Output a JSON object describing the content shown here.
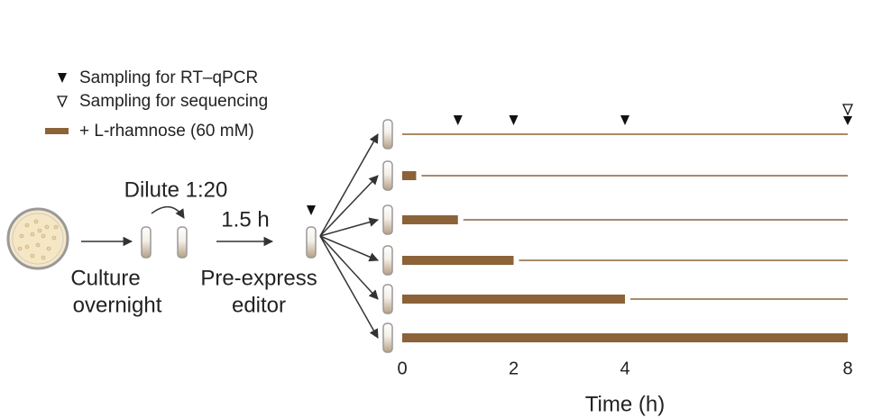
{
  "legend": {
    "qpcr": "Sampling for RT–qPCR",
    "sequencing": "Sampling for sequencing",
    "rhamnose": "+ L-rhamnose (60 mM)"
  },
  "workflow": {
    "dilute": "Dilute 1:20",
    "incubation": "1.5 h",
    "culture": [
      "Culture",
      "overnight"
    ],
    "preexpress": [
      "Pre-express",
      "editor"
    ]
  },
  "timeline": {
    "xlabel": "Time (h)",
    "xlim": [
      0,
      8
    ],
    "xticks": [
      0,
      2,
      4,
      8
    ],
    "rhamnose_durations": [
      0,
      0.25,
      1,
      2,
      4,
      8
    ],
    "qpcr_samples": [
      1,
      2,
      4
    ],
    "sequencing_samples": [
      8
    ],
    "color": "#8c6239"
  }
}
